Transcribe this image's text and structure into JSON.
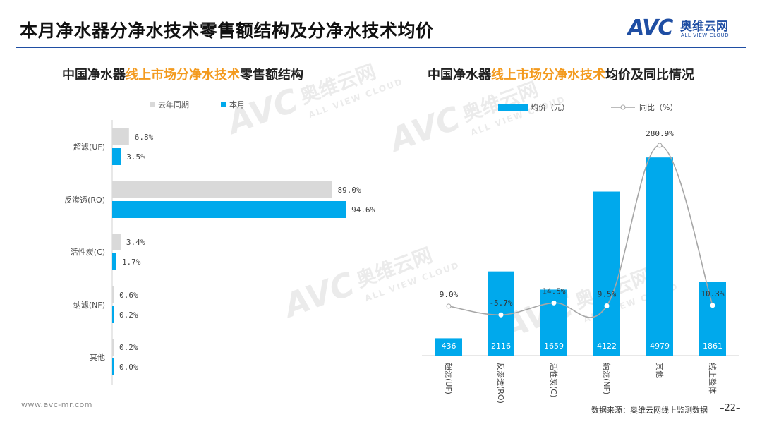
{
  "page": {
    "title": "本月净水器分净水技术零售额结构及分净水技术均价",
    "footer_url": "www.avc-mr.com",
    "source": "数据来源：奥维云网线上监测数据",
    "page_number": "–22–"
  },
  "logo": {
    "mark": "AVC",
    "cn": "奥维云网",
    "en": "ALL VIEW CLOUD"
  },
  "watermark": {
    "mark": "AVC",
    "cn": "奥维云网",
    "en": "ALL VIEW CLOUD"
  },
  "left_chart": {
    "title_pre": "中国净水器",
    "title_hl": "线上市场分净水技术",
    "title_post": "零售额结构"
  },
  "right_chart": {
    "title_pre": "中国净水器",
    "title_hl": "线上市场分净水技术",
    "title_post": "均价及同比情况"
  },
  "colors": {
    "accent": "#00a9ec",
    "gray_bar": "#d9d9d9",
    "line": "#a6a6a6",
    "highlight": "#f39a1e",
    "brand": "#1f4ea3"
  },
  "chart_data": [
    {
      "type": "bar",
      "orientation": "horizontal",
      "categories": [
        "超滤(UF)",
        "反渗透(RO)",
        "活性炭(C)",
        "纳滤(NF)",
        "其他"
      ],
      "series": [
        {
          "name": "去年同期",
          "values": [
            6.8,
            89.0,
            3.4,
            0.6,
            0.2
          ],
          "labels": [
            "6.8%",
            "89.0%",
            "3.4%",
            "0.6%",
            "0.2%"
          ]
        },
        {
          "name": "本月",
          "values": [
            3.5,
            94.6,
            1.7,
            0.2,
            0.0
          ],
          "labels": [
            "3.5%",
            "94.6%",
            "1.7%",
            "0.2%",
            "0.0%"
          ]
        }
      ],
      "xlim": [
        0,
        100
      ],
      "legend": "top-left"
    },
    {
      "type": "bar+line",
      "categories": [
        "超滤(UF)",
        "反渗透(RO)",
        "活性炭(C)",
        "纳滤(NF)",
        "其他",
        "线上整体"
      ],
      "bars": {
        "name": "均价（元）",
        "values": [
          436,
          2116,
          1659,
          4122,
          4979,
          1861
        ],
        "labels": [
          "436",
          "2116",
          "1659",
          "4122",
          "4979",
          "1861"
        ]
      },
      "line": {
        "name": "同比（%）",
        "values": [
          9.0,
          -5.7,
          14.5,
          9.5,
          280.9,
          10.3
        ],
        "labels": [
          "9.0%",
          "-5.7%",
          "14.5%",
          "9.5%",
          "280.9%",
          "10.3%"
        ]
      },
      "legend": "top"
    }
  ]
}
